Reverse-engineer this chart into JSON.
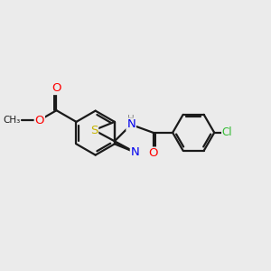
{
  "bg_color": "#ebebeb",
  "bond_color": "#1a1a1a",
  "atom_colors": {
    "O": "#ff0000",
    "S": "#c8b400",
    "N": "#0000ee",
    "Cl": "#33bb33",
    "H": "#888888",
    "C": "#1a1a1a"
  },
  "lw": 1.6,
  "fs": 8.5
}
